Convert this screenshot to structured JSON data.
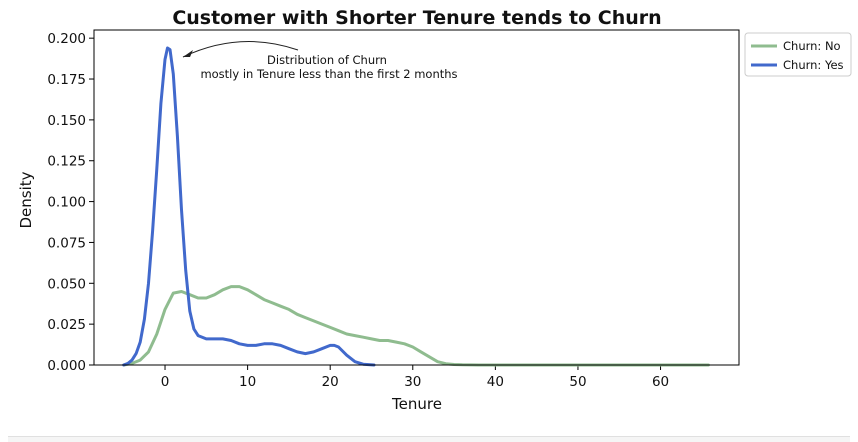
{
  "chart_data": {
    "type": "line",
    "title": "Customer with Shorter Tenure tends to Churn",
    "xlabel": "Tenure",
    "ylabel": "Density",
    "xlim": [
      -8.6,
      69.5
    ],
    "ylim": [
      0,
      0.205
    ],
    "xticks": [
      0,
      10,
      20,
      30,
      40,
      50,
      60
    ],
    "yticks": [
      0.0,
      0.025,
      0.05,
      0.075,
      0.1,
      0.125,
      0.15,
      0.175,
      0.2
    ],
    "ytick_labels": [
      "0.000",
      "0.025",
      "0.050",
      "0.075",
      "0.100",
      "0.125",
      "0.150",
      "0.175",
      "0.200"
    ],
    "grid": false,
    "legend_position": "outside-top-right",
    "series": [
      {
        "name": "Churn: No",
        "color": "#8fbc8f",
        "x": [
          -5.0,
          -4.0,
          -3.0,
          -2.0,
          -1.0,
          0.0,
          1.0,
          2.0,
          3.0,
          4.0,
          5.0,
          6.0,
          7.0,
          8.0,
          9.0,
          10.0,
          11.0,
          12.0,
          13.0,
          14.0,
          15.0,
          16.0,
          17.0,
          18.0,
          19.0,
          20.0,
          21.0,
          22.0,
          23.0,
          24.0,
          25.0,
          26.0,
          27.0,
          28.0,
          29.0,
          30.0,
          31.0,
          32.0,
          33.0,
          34.0,
          35.0,
          36.0,
          38.0,
          40.0,
          45.0,
          50.0,
          55.0,
          60.0,
          65.8
        ],
        "y": [
          0.0,
          0.001,
          0.003,
          0.008,
          0.019,
          0.034,
          0.044,
          0.045,
          0.043,
          0.041,
          0.041,
          0.043,
          0.046,
          0.048,
          0.048,
          0.046,
          0.043,
          0.04,
          0.038,
          0.036,
          0.034,
          0.031,
          0.029,
          0.027,
          0.025,
          0.023,
          0.021,
          0.019,
          0.018,
          0.017,
          0.016,
          0.015,
          0.015,
          0.014,
          0.013,
          0.011,
          0.008,
          0.005,
          0.002,
          0.0008,
          0.0003,
          0.0001,
          0.0,
          0.0,
          0.0,
          0.0,
          0.0,
          0.0,
          0.0
        ]
      },
      {
        "name": "Churn: Yes",
        "color": "#4169cc",
        "x": [
          -5.0,
          -4.5,
          -4.0,
          -3.5,
          -3.0,
          -2.5,
          -2.0,
          -1.5,
          -1.0,
          -0.5,
          0.0,
          0.3,
          0.6,
          1.0,
          1.5,
          2.0,
          2.5,
          3.0,
          3.5,
          4.0,
          5.0,
          6.0,
          7.0,
          8.0,
          9.0,
          10.0,
          11.0,
          12.0,
          13.0,
          14.0,
          15.0,
          16.0,
          17.0,
          18.0,
          19.0,
          20.0,
          20.5,
          21.0,
          22.0,
          23.0,
          24.0,
          25.3
        ],
        "y": [
          0.0,
          0.001,
          0.003,
          0.007,
          0.014,
          0.028,
          0.05,
          0.082,
          0.12,
          0.16,
          0.187,
          0.194,
          0.193,
          0.178,
          0.14,
          0.095,
          0.058,
          0.033,
          0.022,
          0.018,
          0.016,
          0.016,
          0.016,
          0.015,
          0.013,
          0.012,
          0.012,
          0.013,
          0.013,
          0.012,
          0.01,
          0.008,
          0.007,
          0.008,
          0.01,
          0.012,
          0.012,
          0.011,
          0.006,
          0.002,
          0.0005,
          0.0
        ]
      }
    ],
    "annotation": {
      "text_line1": "Distribution of Churn",
      "text_line2": "mostly in Tenure less than the first 2 months",
      "arrow_target": [
        1.8,
        0.186
      ]
    }
  }
}
